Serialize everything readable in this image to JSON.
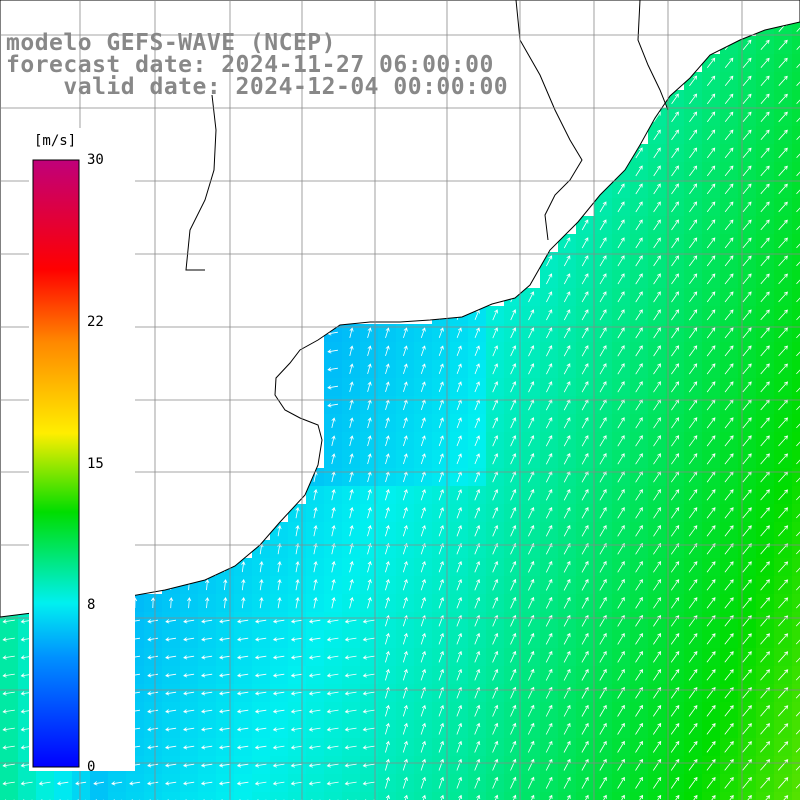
{
  "title": {
    "line1": "modelo GEFS-WAVE (NCEP)",
    "line2": "forecast date: 2024-11-27 06:00:00",
    "line3": "    valid date: 2024-12-04 00:00:00"
  },
  "colorbar": {
    "unit": "[m/s]",
    "ticks": [
      "30",
      "22",
      "15",
      "8",
      "0"
    ],
    "tick_values": [
      30,
      22,
      15,
      8,
      0
    ],
    "min": 0,
    "max": 30,
    "colors": [
      "#0000ff",
      "#0090ff",
      "#00f0f0",
      "#00dd00",
      "#ffee00",
      "#ff8800",
      "#ff0000",
      "#c0007a"
    ]
  },
  "map": {
    "land_color": "#ffffff",
    "coast_color": "#000000",
    "grid_color": "#888888",
    "arrow_color": "#ffffff"
  }
}
